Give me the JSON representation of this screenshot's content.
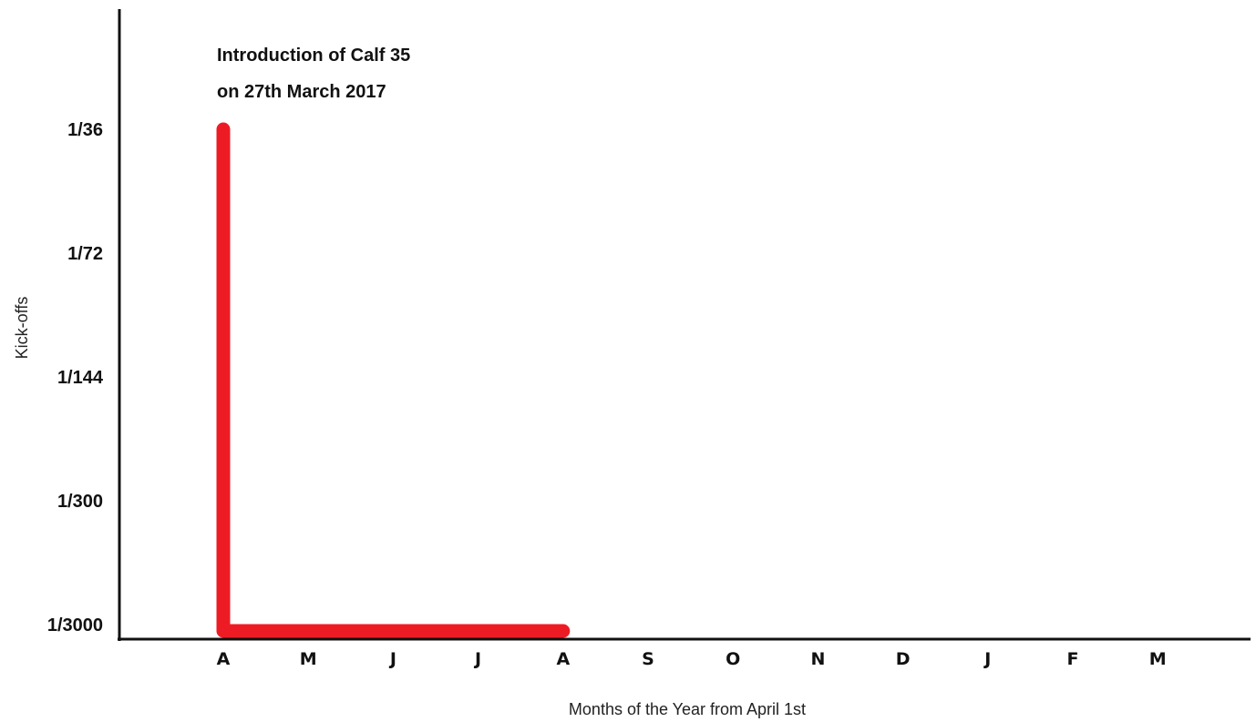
{
  "chart_data": {
    "type": "line",
    "title": "",
    "annotation": [
      "Introduction of Calf 35",
      "on 27th March 2017"
    ],
    "xlabel": "Months of the Year from April 1st",
    "ylabel": "Kick-offs",
    "categories": [
      "A",
      "M",
      "J",
      "J",
      "A",
      "S",
      "O",
      "N",
      "D",
      "J",
      "F",
      "M"
    ],
    "y_ticks": [
      "1/36",
      "1/72",
      "1/144",
      "1/300",
      "1/3000"
    ],
    "series": [
      {
        "color": "#ed1c24",
        "points": [
          {
            "x": "A",
            "y": "1/36"
          },
          {
            "x": "A",
            "y": "1/3000"
          },
          {
            "x": "A",
            "y": "1/3000"
          }
        ],
        "point_month_index": [
          0,
          0,
          4
        ]
      }
    ],
    "grid": false,
    "legend": "none"
  }
}
